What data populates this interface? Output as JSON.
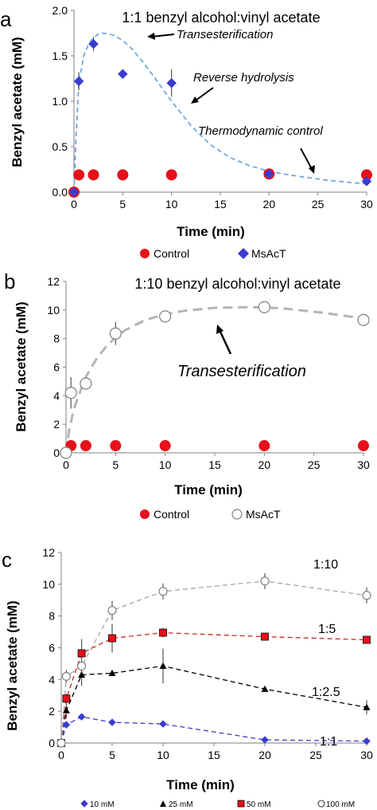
{
  "chart_data": [
    {
      "panel": "a",
      "type": "scatter",
      "title": "1:1 benzyl alcohol:vinyl acetate",
      "xlabel": "Time (min)",
      "ylabel": "Benzyl acetate (mM)",
      "xlim": [
        0,
        30
      ],
      "ylim": [
        0,
        2.0
      ],
      "xticks": [
        "0",
        "5",
        "10",
        "15",
        "20",
        "25",
        "30"
      ],
      "yticks": [
        "0.0",
        "0.5",
        "1.0",
        "1.5",
        "2.0"
      ],
      "grid": false,
      "legend_position": "bottom",
      "series": [
        {
          "name": "Control",
          "marker": "circle",
          "color": "#e8101a",
          "x": [
            0,
            0.5,
            2,
            5,
            10,
            20,
            30
          ],
          "y": [
            0,
            0.19,
            0.19,
            0.19,
            0.19,
            0.2,
            0.19
          ]
        },
        {
          "name": "MsAcT",
          "marker": "diamond",
          "color": "#3b3bd0",
          "x": [
            0,
            0.5,
            2,
            5,
            10,
            20,
            30
          ],
          "y": [
            0,
            1.22,
            1.63,
            1.3,
            1.2,
            0.2,
            0.12
          ],
          "error": [
            0,
            0.1,
            0.08,
            0,
            0.15,
            0,
            0.05
          ]
        }
      ],
      "fit_curve": {
        "style": "dashed",
        "color": "#6fa8dc",
        "x": [
          0,
          0.2,
          0.5,
          1,
          1.5,
          2,
          2.5,
          3,
          4,
          5,
          6,
          7,
          8,
          9,
          10,
          12,
          14,
          16,
          18,
          20,
          22,
          24,
          26,
          28,
          30
        ],
        "y": [
          0,
          0.6,
          1.2,
          1.5,
          1.63,
          1.7,
          1.74,
          1.75,
          1.73,
          1.67,
          1.57,
          1.44,
          1.3,
          1.15,
          1.0,
          0.73,
          0.52,
          0.38,
          0.29,
          0.23,
          0.19,
          0.16,
          0.13,
          0.11,
          0.09
        ]
      },
      "annotations": [
        "Transesterification",
        "Reverse hydrolysis",
        "Thermodynamic control"
      ]
    },
    {
      "panel": "b",
      "type": "scatter",
      "title": "1:10 benzyl alcohol:vinyl acetate",
      "xlabel": "Time (min)",
      "ylabel": "Benzyl acetate (mM)",
      "xlim": [
        0,
        30
      ],
      "ylim": [
        0,
        12
      ],
      "xticks": [
        "0",
        "5",
        "10",
        "15",
        "20",
        "25",
        "30"
      ],
      "yticks": [
        "0",
        "2",
        "4",
        "6",
        "8",
        "10",
        "12"
      ],
      "grid": false,
      "legend_position": "bottom",
      "series": [
        {
          "name": "Control",
          "marker": "circle",
          "color": "#e8101a",
          "x": [
            0.5,
            2,
            5,
            10,
            20,
            30
          ],
          "y": [
            0.5,
            0.5,
            0.5,
            0.5,
            0.5,
            0.5
          ]
        },
        {
          "name": "MsAcT",
          "marker": "open-circle",
          "color": "#808080",
          "x": [
            0,
            0.5,
            2,
            5,
            10,
            20,
            30
          ],
          "y": [
            0,
            4.2,
            4.85,
            8.35,
            9.55,
            10.2,
            9.3
          ],
          "error": [
            0,
            1.1,
            0,
            0.8,
            0.3,
            0.2,
            0.25
          ]
        }
      ],
      "fit_curve": {
        "style": "dashed",
        "color": "#b4b4b4",
        "x": [
          0,
          0.3,
          0.7,
          1,
          2,
          3,
          4,
          5,
          6,
          8,
          10,
          12,
          15,
          18,
          20,
          22,
          24,
          26,
          28,
          30
        ],
        "y": [
          0,
          1.5,
          2.8,
          3.5,
          5.3,
          6.5,
          7.4,
          8.1,
          8.6,
          9.3,
          9.7,
          9.95,
          10.15,
          10.2,
          10.18,
          10.1,
          9.95,
          9.8,
          9.6,
          9.4
        ]
      },
      "annotations": [
        "Transesterification"
      ]
    },
    {
      "panel": "c",
      "type": "line",
      "title": "",
      "xlabel": "Time (min)",
      "ylabel": "Benzyl acetate (mM)",
      "xlim": [
        0,
        30
      ],
      "ylim": [
        0,
        12
      ],
      "xticks": [
        "0",
        "5",
        "10",
        "15",
        "20",
        "25",
        "30"
      ],
      "yticks": [
        "0",
        "2",
        "4",
        "6",
        "8",
        "10",
        "12"
      ],
      "grid": false,
      "legend_position": "bottom",
      "x": [
        0,
        0.5,
        2,
        5,
        10,
        20,
        30
      ],
      "series": [
        {
          "name": "10 mM",
          "marker": "diamond",
          "color": "#3b3bd0",
          "line": "#3b3bd0",
          "y": [
            0,
            1.15,
            1.65,
            1.3,
            1.2,
            0.2,
            0.12
          ],
          "error": [
            0,
            0.1,
            0.08,
            0,
            0.12,
            0,
            0.05
          ]
        },
        {
          "name": "25 mM",
          "marker": "triangle",
          "color": "#000000",
          "line": "#000000",
          "y": [
            0,
            2.05,
            4.3,
            4.4,
            4.85,
            3.4,
            2.25
          ],
          "error": [
            0,
            0.5,
            0.7,
            0,
            1.1,
            0,
            0.45
          ]
        },
        {
          "name": "50 mM",
          "marker": "square",
          "color": "#e8101a",
          "line": "#c62828",
          "y": [
            0,
            2.8,
            5.65,
            6.6,
            6.95,
            6.7,
            6.5
          ],
          "error": [
            0,
            0.3,
            0.9,
            0.9,
            0.3,
            0.2,
            0.2
          ]
        },
        {
          "name": "100 mM",
          "marker": "open-circle",
          "color": "#808080",
          "line": "#a6a6a6",
          "y": [
            0,
            4.2,
            4.85,
            8.35,
            9.55,
            10.2,
            9.3
          ],
          "error": [
            0,
            0.4,
            0,
            0.6,
            0.5,
            0.5,
            0.5
          ]
        }
      ],
      "ratio_labels": [
        "1:10",
        "1:5",
        "1:2.5",
        "1:1"
      ]
    }
  ],
  "legends": {
    "a": {
      "control": "Control",
      "msact": "MsAcT"
    },
    "b": {
      "control": "Control",
      "msact": "MsAcT"
    },
    "c": {
      "s1": "10 mM",
      "s2": "25 mM",
      "s3": "50 mM",
      "s4": "100 mM"
    }
  },
  "panel_letters": {
    "a": "a",
    "b": "b",
    "c": "c"
  }
}
